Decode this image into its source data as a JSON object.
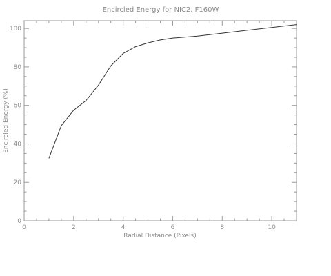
{
  "chart_data": {
    "type": "line",
    "title": "Encircled Energy for NIC2, F160W",
    "xlabel": "Radial Distance (Pixels)",
    "ylabel": "Encircled Energy (%)",
    "xlim": [
      0,
      11
    ],
    "ylim": [
      0,
      104
    ],
    "grid": false,
    "x_ticks": [
      0,
      2,
      4,
      6,
      8,
      10
    ],
    "y_ticks": [
      0,
      20,
      40,
      60,
      80,
      100
    ],
    "x_tick_labels": [
      "0",
      "2",
      "4",
      "6",
      "8",
      "10"
    ],
    "y_tick_labels": [
      "0",
      "20",
      "40",
      "60",
      "80",
      "100"
    ],
    "series": [
      {
        "color": "#333333",
        "x": [
          1.0,
          1.5,
          2.0,
          2.5,
          3.0,
          3.5,
          4.0,
          4.5,
          5.0,
          5.5,
          6.0,
          7.0,
          8.0,
          9.0,
          10.0,
          11.0
        ],
        "y": [
          32.5,
          49.5,
          57.5,
          62.5,
          70.5,
          80.5,
          87,
          90.5,
          92.5,
          94,
          95,
          96,
          97.5,
          99,
          100.5,
          102
        ]
      }
    ]
  }
}
